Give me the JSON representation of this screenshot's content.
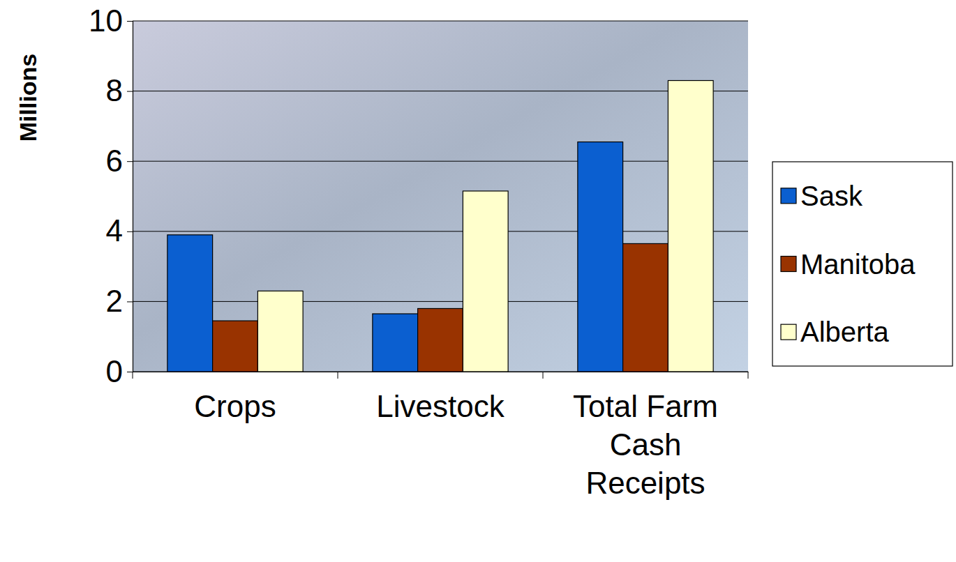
{
  "chart_data": {
    "type": "bar",
    "y_label": "Millions",
    "categories": [
      "Crops",
      "Livestock",
      "Total Farm Cash Receipts"
    ],
    "series": [
      {
        "name": "Sask",
        "color": "#0b5fd0",
        "values": [
          3.9,
          1.65,
          6.55
        ]
      },
      {
        "name": "Manitoba",
        "color": "#993300",
        "values": [
          1.45,
          1.8,
          3.65
        ]
      },
      {
        "name": "Alberta",
        "color": "#ffffcc",
        "values": [
          2.3,
          5.15,
          8.3
        ]
      }
    ],
    "ylim": [
      0,
      10
    ],
    "yticks": [
      0,
      2,
      4,
      6,
      8,
      10
    ],
    "grid": true,
    "legend": "right"
  }
}
